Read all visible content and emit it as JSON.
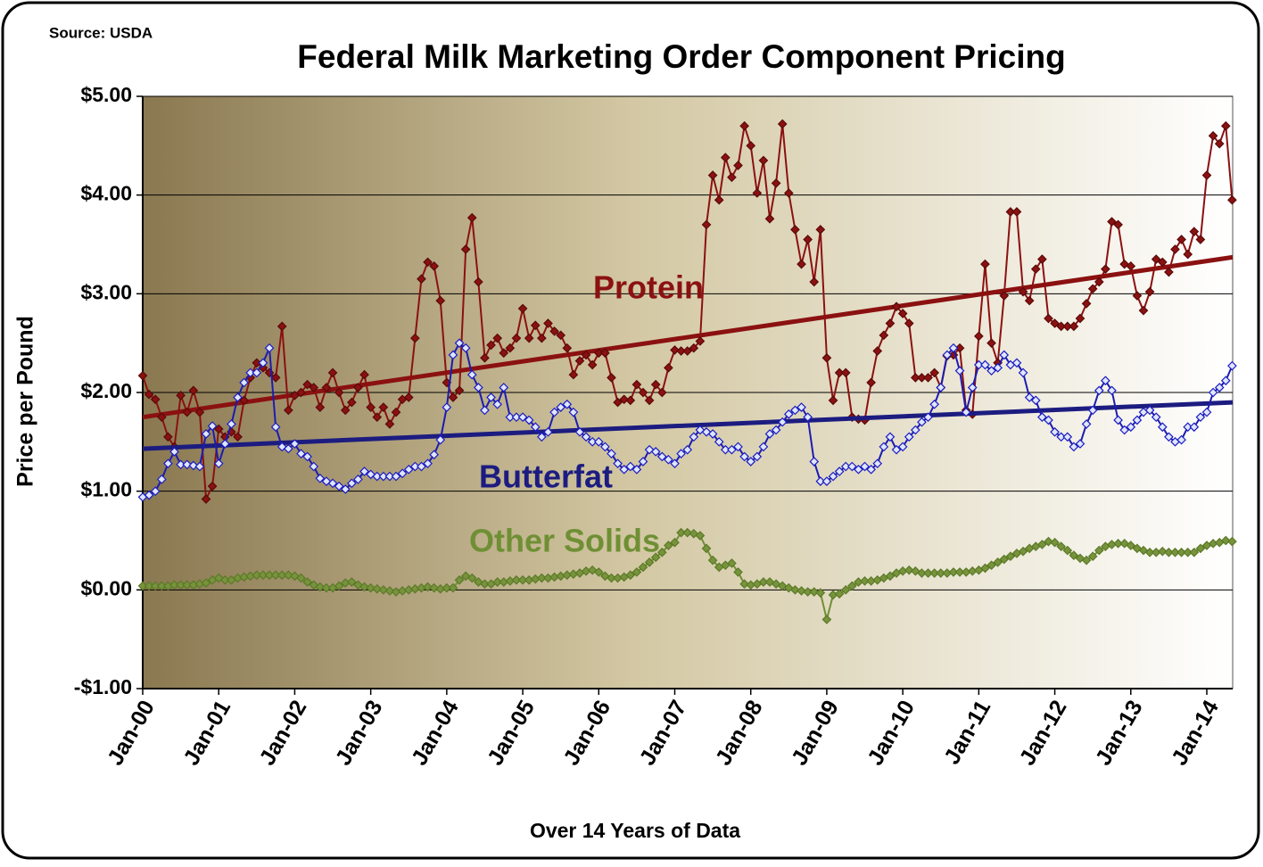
{
  "chart_data": {
    "type": "line",
    "title": "Federal Milk Marketing Order Component Pricing",
    "source": "Source: USDA",
    "y_label": "Price per Pound",
    "x_label": "Over 14 Years of Data",
    "grid": true,
    "ylim": [
      -1,
      5
    ],
    "yticks": [
      {
        "value": -1,
        "label": "-$1.00"
      },
      {
        "value": 0,
        "label": "$0.00"
      },
      {
        "value": 1,
        "label": "$1.00"
      },
      {
        "value": 2,
        "label": "$2.00"
      },
      {
        "value": 3,
        "label": "$3.00"
      },
      {
        "value": 4,
        "label": "$4.00"
      },
      {
        "value": 5,
        "label": "$5.00"
      }
    ],
    "categories": [
      "Jan-00",
      null,
      null,
      null,
      null,
      null,
      null,
      null,
      null,
      null,
      null,
      null,
      "Jan-01",
      null,
      null,
      null,
      null,
      null,
      null,
      null,
      null,
      null,
      null,
      null,
      "Jan-02",
      null,
      null,
      null,
      null,
      null,
      null,
      null,
      null,
      null,
      null,
      null,
      "Jan-03",
      null,
      null,
      null,
      null,
      null,
      null,
      null,
      null,
      null,
      null,
      null,
      "Jan-04",
      null,
      null,
      null,
      null,
      null,
      null,
      null,
      null,
      null,
      null,
      null,
      "Jan-05",
      null,
      null,
      null,
      null,
      null,
      null,
      null,
      null,
      null,
      null,
      null,
      "Jan-06",
      null,
      null,
      null,
      null,
      null,
      null,
      null,
      null,
      null,
      null,
      null,
      "Jan-07",
      null,
      null,
      null,
      null,
      null,
      null,
      null,
      null,
      null,
      null,
      null,
      "Jan-08",
      null,
      null,
      null,
      null,
      null,
      null,
      null,
      null,
      null,
      null,
      null,
      "Jan-09",
      null,
      null,
      null,
      null,
      null,
      null,
      null,
      null,
      null,
      null,
      null,
      "Jan-10",
      null,
      null,
      null,
      null,
      null,
      null,
      null,
      null,
      null,
      null,
      null,
      "Jan-11",
      null,
      null,
      null,
      null,
      null,
      null,
      null,
      null,
      null,
      null,
      null,
      "Jan-12",
      null,
      null,
      null,
      null,
      null,
      null,
      null,
      null,
      null,
      null,
      null,
      "Jan-13",
      null,
      null,
      null,
      null,
      null,
      null,
      null,
      null,
      null,
      null,
      null,
      "Jan-14",
      null,
      null,
      null,
      null
    ],
    "series": [
      {
        "name": "Protein",
        "color": "#8b1111",
        "trend": [
          1.75,
          3.37
        ],
        "values": [
          2.17,
          1.98,
          1.93,
          1.75,
          1.55,
          1.45,
          1.97,
          1.8,
          2.02,
          1.8,
          0.92,
          1.05,
          1.63,
          1.55,
          1.6,
          1.55,
          1.92,
          2.15,
          2.3,
          2.25,
          2.2,
          2.15,
          2.67,
          1.82,
          1.97,
          2.0,
          2.08,
          2.05,
          1.85,
          2.05,
          2.2,
          2.0,
          1.82,
          1.9,
          2.05,
          2.18,
          1.85,
          1.75,
          1.85,
          1.68,
          1.8,
          1.93,
          1.95,
          2.55,
          3.15,
          3.32,
          3.28,
          2.93,
          2.1,
          1.95,
          2.02,
          3.45,
          3.77,
          3.12,
          2.35,
          2.48,
          2.55,
          2.4,
          2.45,
          2.55,
          2.85,
          2.55,
          2.68,
          2.55,
          2.7,
          2.62,
          2.58,
          2.45,
          2.18,
          2.32,
          2.38,
          2.28,
          2.4,
          2.4,
          2.15,
          1.9,
          1.93,
          1.92,
          2.08,
          2.0,
          1.92,
          2.08,
          2.0,
          2.25,
          2.43,
          2.42,
          2.42,
          2.45,
          2.52,
          3.7,
          4.2,
          3.95,
          4.38,
          4.18,
          4.3,
          4.7,
          4.5,
          4.02,
          4.35,
          3.76,
          4.12,
          4.72,
          4.02,
          3.65,
          3.3,
          3.55,
          3.12,
          3.65,
          2.35,
          1.92,
          2.2,
          2.2,
          1.75,
          1.73,
          1.72,
          2.1,
          2.42,
          2.58,
          2.7,
          2.87,
          2.8,
          2.7,
          2.15,
          2.15,
          2.15,
          2.2,
          2.05,
          2.37,
          2.38,
          2.45,
          1.82,
          1.78,
          2.57,
          3.3,
          2.5,
          2.3,
          2.98,
          3.83,
          3.83,
          3.02,
          2.93,
          3.25,
          3.35,
          2.75,
          2.7,
          2.67,
          2.67,
          2.67,
          2.75,
          2.9,
          3.05,
          3.12,
          3.25,
          3.73,
          3.7,
          3.3,
          3.28,
          2.98,
          2.83,
          3.02,
          3.35,
          3.32,
          3.22,
          3.45,
          3.55,
          3.4,
          3.63,
          3.55,
          4.2,
          4.6,
          4.52,
          4.7,
          3.95
        ]
      },
      {
        "name": "Butterfat",
        "color": "#1c1c80",
        "trend": [
          1.43,
          1.9
        ],
        "values": [
          0.94,
          0.96,
          1.0,
          1.12,
          1.28,
          1.4,
          1.27,
          1.27,
          1.26,
          1.25,
          1.58,
          1.66,
          1.28,
          1.48,
          1.68,
          1.95,
          2.1,
          2.2,
          2.2,
          2.3,
          2.45,
          1.65,
          1.45,
          1.43,
          1.48,
          1.38,
          1.35,
          1.25,
          1.13,
          1.1,
          1.08,
          1.05,
          1.02,
          1.08,
          1.12,
          1.2,
          1.17,
          1.15,
          1.15,
          1.15,
          1.15,
          1.18,
          1.22,
          1.25,
          1.25,
          1.28,
          1.37,
          1.52,
          1.85,
          2.38,
          2.5,
          2.45,
          2.18,
          2.05,
          1.82,
          1.95,
          1.88,
          2.05,
          1.75,
          1.75,
          1.75,
          1.72,
          1.65,
          1.55,
          1.6,
          1.8,
          1.85,
          1.88,
          1.8,
          1.6,
          1.55,
          1.5,
          1.5,
          1.45,
          1.38,
          1.28,
          1.22,
          1.25,
          1.22,
          1.3,
          1.42,
          1.4,
          1.35,
          1.32,
          1.28,
          1.38,
          1.42,
          1.55,
          1.62,
          1.6,
          1.58,
          1.5,
          1.42,
          1.42,
          1.45,
          1.35,
          1.3,
          1.35,
          1.45,
          1.58,
          1.62,
          1.7,
          1.78,
          1.82,
          1.85,
          1.75,
          1.3,
          1.1,
          1.1,
          1.15,
          1.2,
          1.25,
          1.25,
          1.22,
          1.25,
          1.22,
          1.28,
          1.45,
          1.55,
          1.42,
          1.45,
          1.55,
          1.62,
          1.7,
          1.75,
          1.88,
          2.05,
          2.38,
          2.45,
          2.22,
          1.8,
          2.05,
          2.28,
          2.28,
          2.22,
          2.25,
          2.38,
          2.28,
          2.3,
          2.2,
          1.95,
          1.92,
          1.75,
          1.72,
          1.6,
          1.55,
          1.55,
          1.45,
          1.48,
          1.68,
          1.82,
          2.02,
          2.12,
          2.02,
          1.72,
          1.62,
          1.65,
          1.72,
          1.8,
          1.82,
          1.75,
          1.65,
          1.55,
          1.5,
          1.52,
          1.65,
          1.65,
          1.75,
          1.8,
          2.0,
          2.05,
          2.12,
          2.27
        ]
      },
      {
        "name": "Other Solids",
        "color": "#6f8f35",
        "values": [
          0.04,
          0.04,
          0.04,
          0.04,
          0.04,
          0.05,
          0.05,
          0.05,
          0.05,
          0.06,
          0.07,
          0.1,
          0.12,
          0.1,
          0.1,
          0.12,
          0.13,
          0.14,
          0.15,
          0.15,
          0.15,
          0.15,
          0.15,
          0.15,
          0.14,
          0.12,
          0.08,
          0.05,
          0.03,
          0.02,
          0.02,
          0.04,
          0.07,
          0.08,
          0.05,
          0.03,
          0.02,
          0.01,
          0.0,
          -0.01,
          -0.02,
          -0.01,
          0.0,
          0.01,
          0.02,
          0.03,
          0.02,
          0.01,
          0.02,
          0.02,
          0.1,
          0.14,
          0.12,
          0.08,
          0.06,
          0.06,
          0.08,
          0.08,
          0.09,
          0.1,
          0.1,
          0.1,
          0.11,
          0.12,
          0.12,
          0.13,
          0.14,
          0.15,
          0.16,
          0.17,
          0.19,
          0.2,
          0.18,
          0.14,
          0.12,
          0.12,
          0.13,
          0.15,
          0.18,
          0.23,
          0.28,
          0.33,
          0.38,
          0.45,
          0.48,
          0.58,
          0.58,
          0.57,
          0.55,
          0.42,
          0.3,
          0.23,
          0.25,
          0.27,
          0.18,
          0.06,
          0.05,
          0.06,
          0.08,
          0.08,
          0.06,
          0.04,
          0.02,
          0.0,
          -0.01,
          -0.02,
          -0.02,
          -0.03,
          -0.3,
          -0.05,
          -0.04,
          0.0,
          0.04,
          0.08,
          0.09,
          0.09,
          0.1,
          0.12,
          0.14,
          0.17,
          0.19,
          0.2,
          0.19,
          0.17,
          0.17,
          0.17,
          0.17,
          0.17,
          0.18,
          0.18,
          0.18,
          0.19,
          0.2,
          0.22,
          0.25,
          0.28,
          0.31,
          0.34,
          0.37,
          0.39,
          0.42,
          0.44,
          0.46,
          0.49,
          0.48,
          0.44,
          0.4,
          0.35,
          0.32,
          0.3,
          0.34,
          0.4,
          0.44,
          0.46,
          0.47,
          0.47,
          0.45,
          0.42,
          0.4,
          0.38,
          0.38,
          0.39,
          0.38,
          0.38,
          0.38,
          0.38,
          0.38,
          0.42,
          0.45,
          0.47,
          0.48,
          0.5,
          0.49
        ]
      }
    ]
  }
}
